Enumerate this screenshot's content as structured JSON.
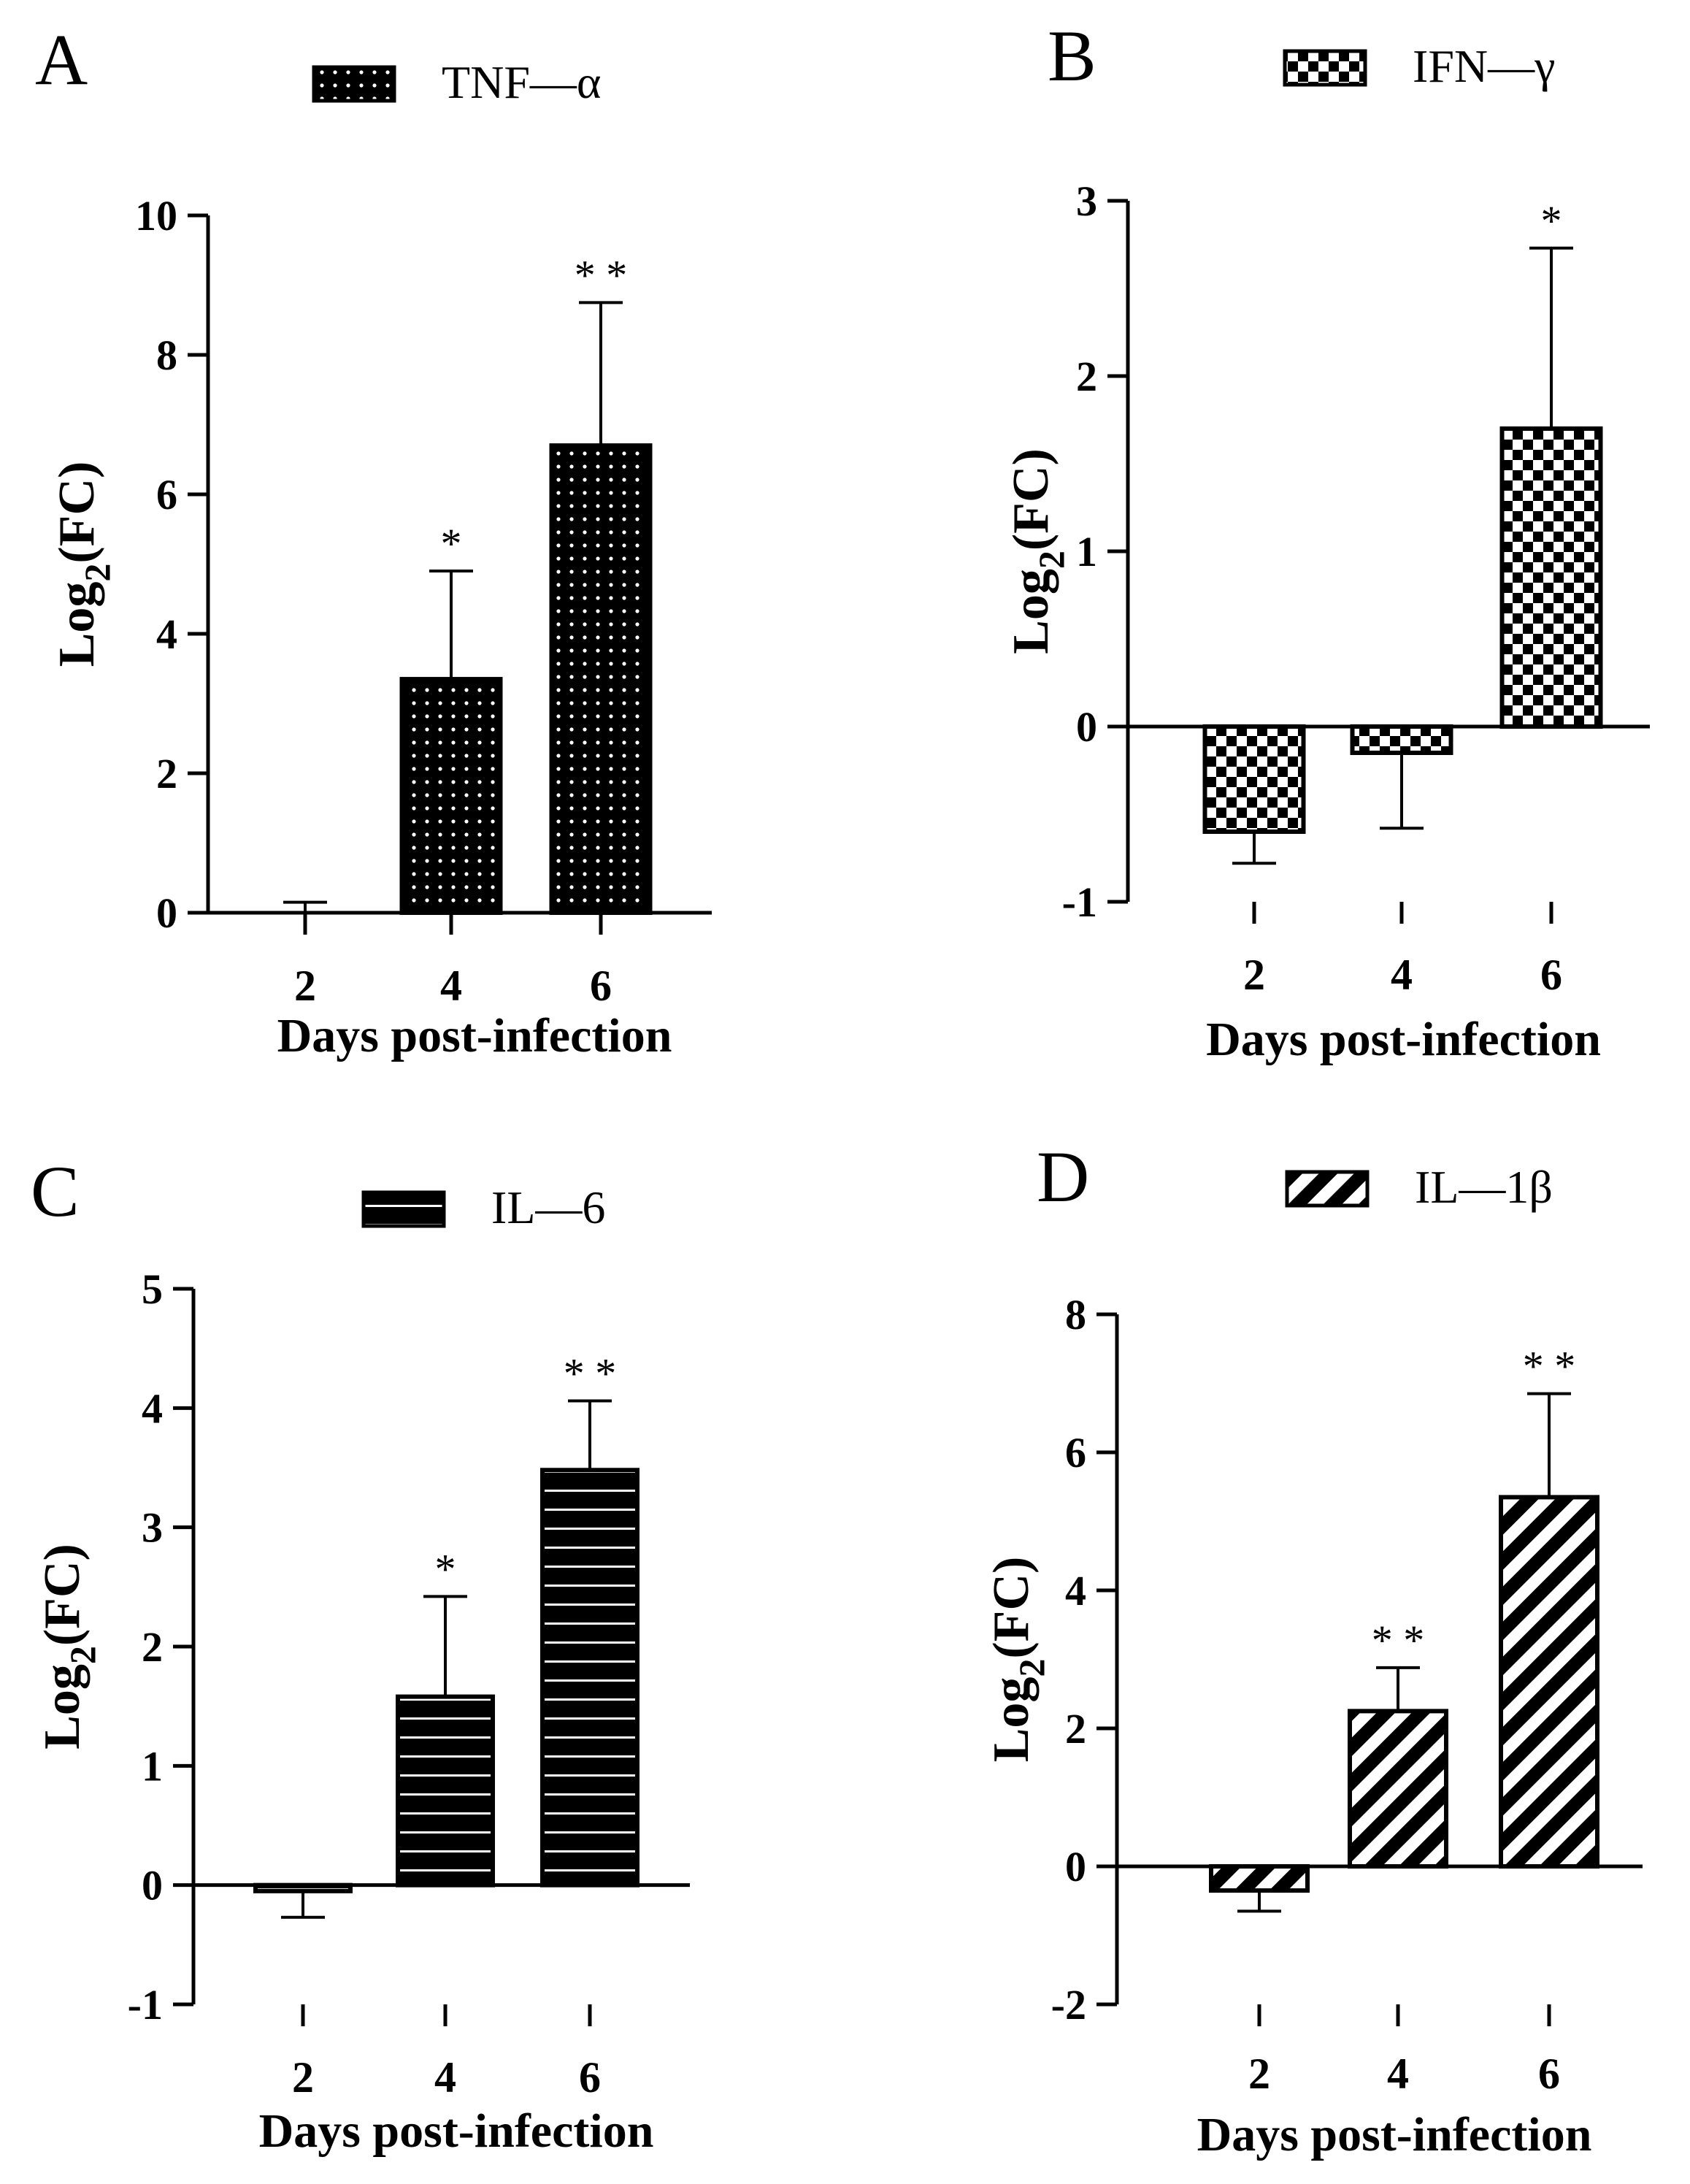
{
  "figure": {
    "panel_letters": [
      "A",
      "B",
      "C",
      "D"
    ]
  },
  "chart_data": [
    {
      "panel": "A",
      "type": "bar",
      "legend_label": "TNF—α",
      "pattern": "dots",
      "categories": [
        "2",
        "4",
        "6"
      ],
      "values": [
        0.0,
        3.35,
        6.7
      ],
      "errors": [
        0.15,
        1.55,
        2.05
      ],
      "significance": [
        "",
        "*",
        "* *"
      ],
      "xlabel": "Days post-infection",
      "ylabel": "Log",
      "ylabel_sub": "2",
      "ylabel_tail": "(FC)",
      "ylim": [
        0,
        10
      ],
      "yticks": [
        0,
        2,
        4,
        6,
        8,
        10
      ],
      "ytick_labels": [
        "0",
        "2",
        "4",
        "6",
        "8",
        "10"
      ]
    },
    {
      "panel": "B",
      "type": "bar",
      "legend_label": "IFN—γ",
      "pattern": "checker",
      "categories": [
        "2",
        "4",
        "6"
      ],
      "values": [
        -0.6,
        -0.15,
        1.7
      ],
      "errors": [
        0.18,
        0.43,
        1.03
      ],
      "significance": [
        "",
        "",
        "*"
      ],
      "xlabel": "Days post-infection",
      "ylabel": "Log",
      "ylabel_sub": "2",
      "ylabel_tail": "(FC)",
      "ylim": [
        -1,
        3
      ],
      "yticks": [
        -1,
        0,
        1,
        2,
        3
      ],
      "ytick_labels": [
        "-1",
        "0",
        "1",
        "2",
        "3"
      ]
    },
    {
      "panel": "C",
      "type": "bar",
      "legend_label": "IL—6",
      "pattern": "hlines",
      "categories": [
        "2",
        "4",
        "6"
      ],
      "values": [
        -0.05,
        1.58,
        3.48
      ],
      "errors": [
        0.22,
        0.84,
        0.58
      ],
      "significance": [
        "",
        "*",
        "* *"
      ],
      "xlabel": "Days post-infection",
      "ylabel": "Log",
      "ylabel_sub": "2",
      "ylabel_tail": "(FC)",
      "ylim": [
        -1,
        5
      ],
      "yticks": [
        -1,
        0,
        1,
        2,
        3,
        4,
        5
      ],
      "ytick_labels": [
        "-1",
        "0",
        "1",
        "2",
        "3",
        "4",
        "5"
      ]
    },
    {
      "panel": "D",
      "type": "bar",
      "legend_label": "IL—1β",
      "pattern": "diagonal",
      "categories": [
        "2",
        "4",
        "6"
      ],
      "values": [
        -0.35,
        2.25,
        5.35
      ],
      "errors": [
        0.3,
        0.63,
        1.5
      ],
      "significance": [
        "",
        "* *",
        "* *"
      ],
      "xlabel": "Days post-infection",
      "ylabel": "Log",
      "ylabel_sub": "2",
      "ylabel_tail": "(FC)",
      "ylim": [
        -2,
        8
      ],
      "yticks": [
        -2,
        0,
        2,
        4,
        6,
        8
      ],
      "ytick_labels": [
        "-2",
        "0",
        "2",
        "4",
        "6",
        "8"
      ]
    }
  ]
}
